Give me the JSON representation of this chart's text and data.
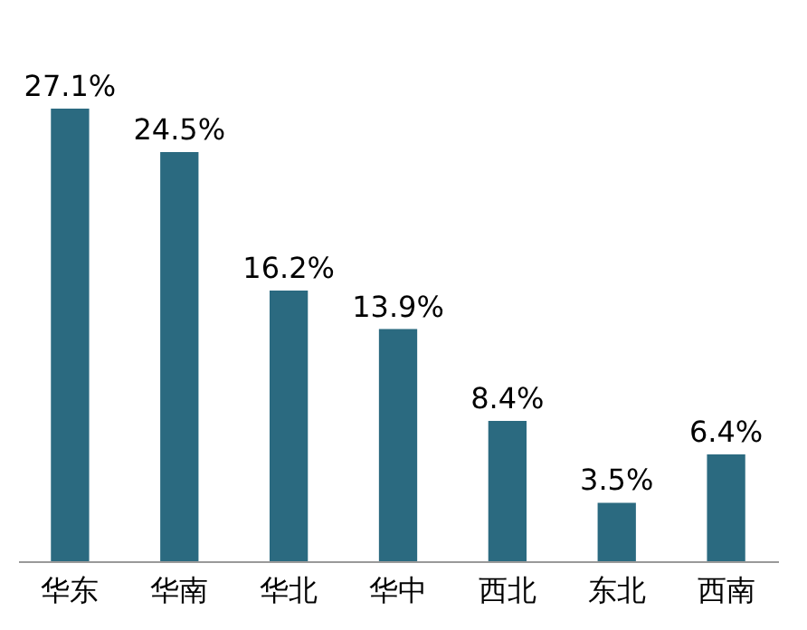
{
  "chart_data": {
    "type": "bar",
    "categories": [
      "华东",
      "华南",
      "华北",
      "华中",
      "西北",
      "东北",
      "西南"
    ],
    "values": [
      27.1,
      24.5,
      16.2,
      13.9,
      8.4,
      3.5,
      6.4
    ],
    "value_labels": [
      "27.1%",
      "24.5%",
      "16.2%",
      "13.9%",
      "8.4%",
      "3.5%",
      "6.4%"
    ],
    "color": "#2b6a80"
  }
}
